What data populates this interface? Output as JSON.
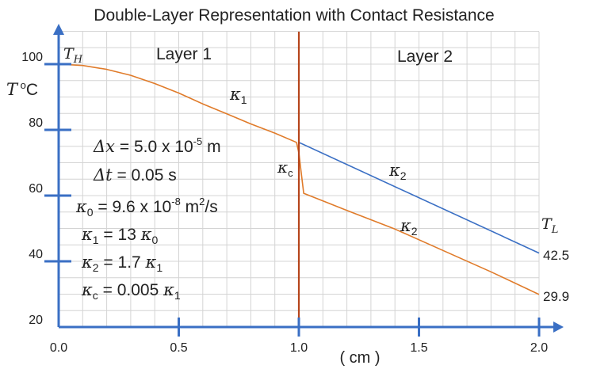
{
  "chart_data": {
    "type": "line",
    "title": "Double-Layer Representation with Contact Resistance",
    "xlabel": "( cm )",
    "ylabel": "T °C",
    "xlim": [
      0.0,
      2.0
    ],
    "ylim": [
      20,
      110
    ],
    "x_ticks": [
      "0.0",
      "0.5",
      "1.0",
      "1.5",
      "2.0"
    ],
    "y_ticks": [
      "20",
      "40",
      "60",
      "80",
      "100"
    ],
    "grid": true,
    "regions": [
      "Layer 1",
      "Layer 2"
    ],
    "boundary_x": 1.0,
    "end_labels": {
      "left": "T_H",
      "right": "T_L"
    },
    "series": [
      {
        "color": "#e07b2a",
        "x": [
          0.0,
          0.1,
          0.2,
          0.3,
          0.4,
          0.5,
          0.6,
          0.7,
          0.8,
          0.9,
          0.99,
          1.0
        ],
        "values": [
          100,
          99.6,
          98.4,
          96.6,
          94.1,
          91.2,
          87.9,
          84.9,
          81.8,
          79.0,
          76.2,
          73.0
        ],
        "curve_label": "κ1"
      },
      {
        "color": "#3a6fc4",
        "x": [
          1.0,
          2.0
        ],
        "values": [
          76.2,
          42.5
        ],
        "curve_label": "κ2"
      },
      {
        "color": "#e07b2a",
        "x": [
          1.0,
          1.02,
          1.2,
          1.4,
          1.6,
          1.8,
          2.0
        ],
        "values": [
          73.0,
          60.7,
          55.5,
          49.8,
          43.3,
          36.8,
          29.9
        ],
        "curve_label": "κ2"
      }
    ],
    "contact_label": "κc",
    "end_values": [
      "42.5",
      "29.9"
    ],
    "annotations": [
      "Δx = 5.0 x 10⁻⁵ m",
      "Δt = 0.05 s",
      "κ0 = 9.6 x 10⁻⁸ m²/s",
      "κ1 = 13 κ0",
      "κ2 = 1.7 κ1",
      "κc = 0.005 κ1"
    ],
    "colors": {
      "axis": "#3a6fc4",
      "grid": "#d4d4d4",
      "boundary": "#b5451b"
    }
  }
}
